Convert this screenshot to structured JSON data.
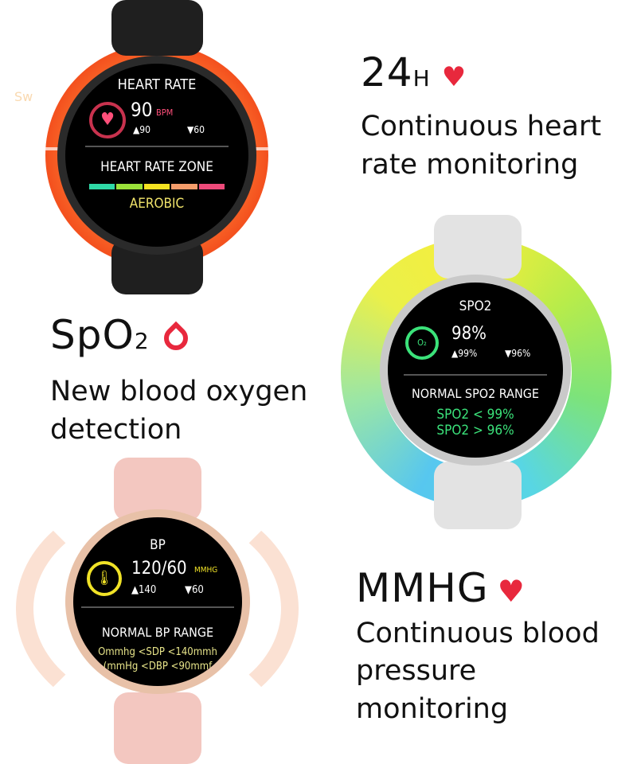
{
  "watermark": "Sw",
  "heart": {
    "headline": "24",
    "headline_sub": "H",
    "icon": "heart-icon",
    "lines": [
      "Continuous heart",
      "rate monitoring"
    ],
    "screen": {
      "title": "HEART RATE",
      "value": "90",
      "unit": "BPM",
      "max": "▲90",
      "min": "▼60",
      "zone_title": "HEART RATE ZONE",
      "zone": "AEROBIC",
      "zone_colors": [
        "#2fd9a6",
        "#9be23a",
        "#f5e321",
        "#f59d6b",
        "#ee4a7a"
      ]
    },
    "accent": "#f4511e"
  },
  "spo2": {
    "headline": "SpO",
    "headline_sub": "2",
    "icon": "blood-drop-icon",
    "lines": [
      "New blood oxygen",
      "detection"
    ],
    "screen": {
      "title": "SPO2",
      "value": "98%",
      "max": "▲99%",
      "min": "▼96%",
      "range_title": "NORMAL SPO2 RANGE",
      "range": [
        "SPO2 < 99%",
        "SPO2 > 96%"
      ],
      "icon_label": "O₂"
    },
    "accent": "#3be27a"
  },
  "bp": {
    "headline": "MMHG",
    "icon": "heart-pulse-icon",
    "lines": [
      "Continuous blood",
      "pressure monitoring"
    ],
    "screen": {
      "title": "BP",
      "value": "120/60",
      "unit": "MMHG",
      "max": "▲140",
      "min": "▼60",
      "range_title": "NORMAL BP RANGE",
      "range": [
        "Ommhg <SDP <140mmh",
        "(mmHg <DBP <90mmf"
      ]
    },
    "accent": "#f0e227"
  }
}
